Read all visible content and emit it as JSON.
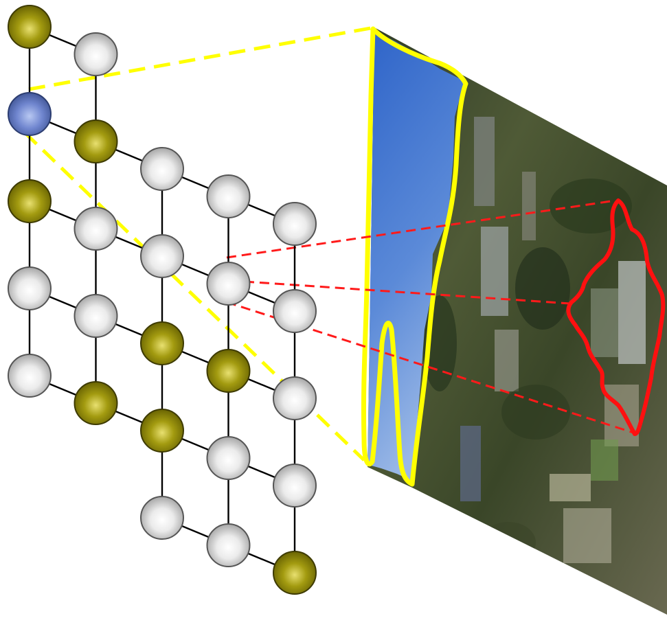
{
  "colors": {
    "edge": "#000000",
    "node_gray": "#c9c9c9",
    "node_olive": "#9a9400",
    "node_blue": "#6f86cf",
    "sky_region_outline": "#ffff00",
    "sky_dashed_lines": "#ffff00",
    "building_region_outline": "#ff0000",
    "building_dashed_lines": "#ff0000",
    "sky": "#3f6fd0",
    "ground": "#3c4a28"
  },
  "graph": {
    "grid_columns": 5,
    "grid_rows": 6,
    "node_labels": [
      [
        "olive",
        "blue",
        "olive",
        "gray",
        "gray",
        null
      ],
      [
        "gray",
        "olive",
        "gray",
        "gray",
        "olive",
        null
      ],
      [
        null,
        "gray",
        "gray",
        "olive",
        "olive",
        "gray"
      ],
      [
        null,
        "gray",
        "gray",
        "olive",
        "gray",
        "gray"
      ],
      [
        null,
        "gray",
        "gray",
        "gray",
        "gray",
        "olive"
      ]
    ],
    "node_icons": {
      "gray": "label-unknown-node",
      "olive": "label-foreground-node",
      "blue": "selected-sky-node"
    }
  },
  "projection": {
    "image_content": "aerial-campus-photo",
    "regions": [
      "sky-region",
      "building-region"
    ]
  }
}
